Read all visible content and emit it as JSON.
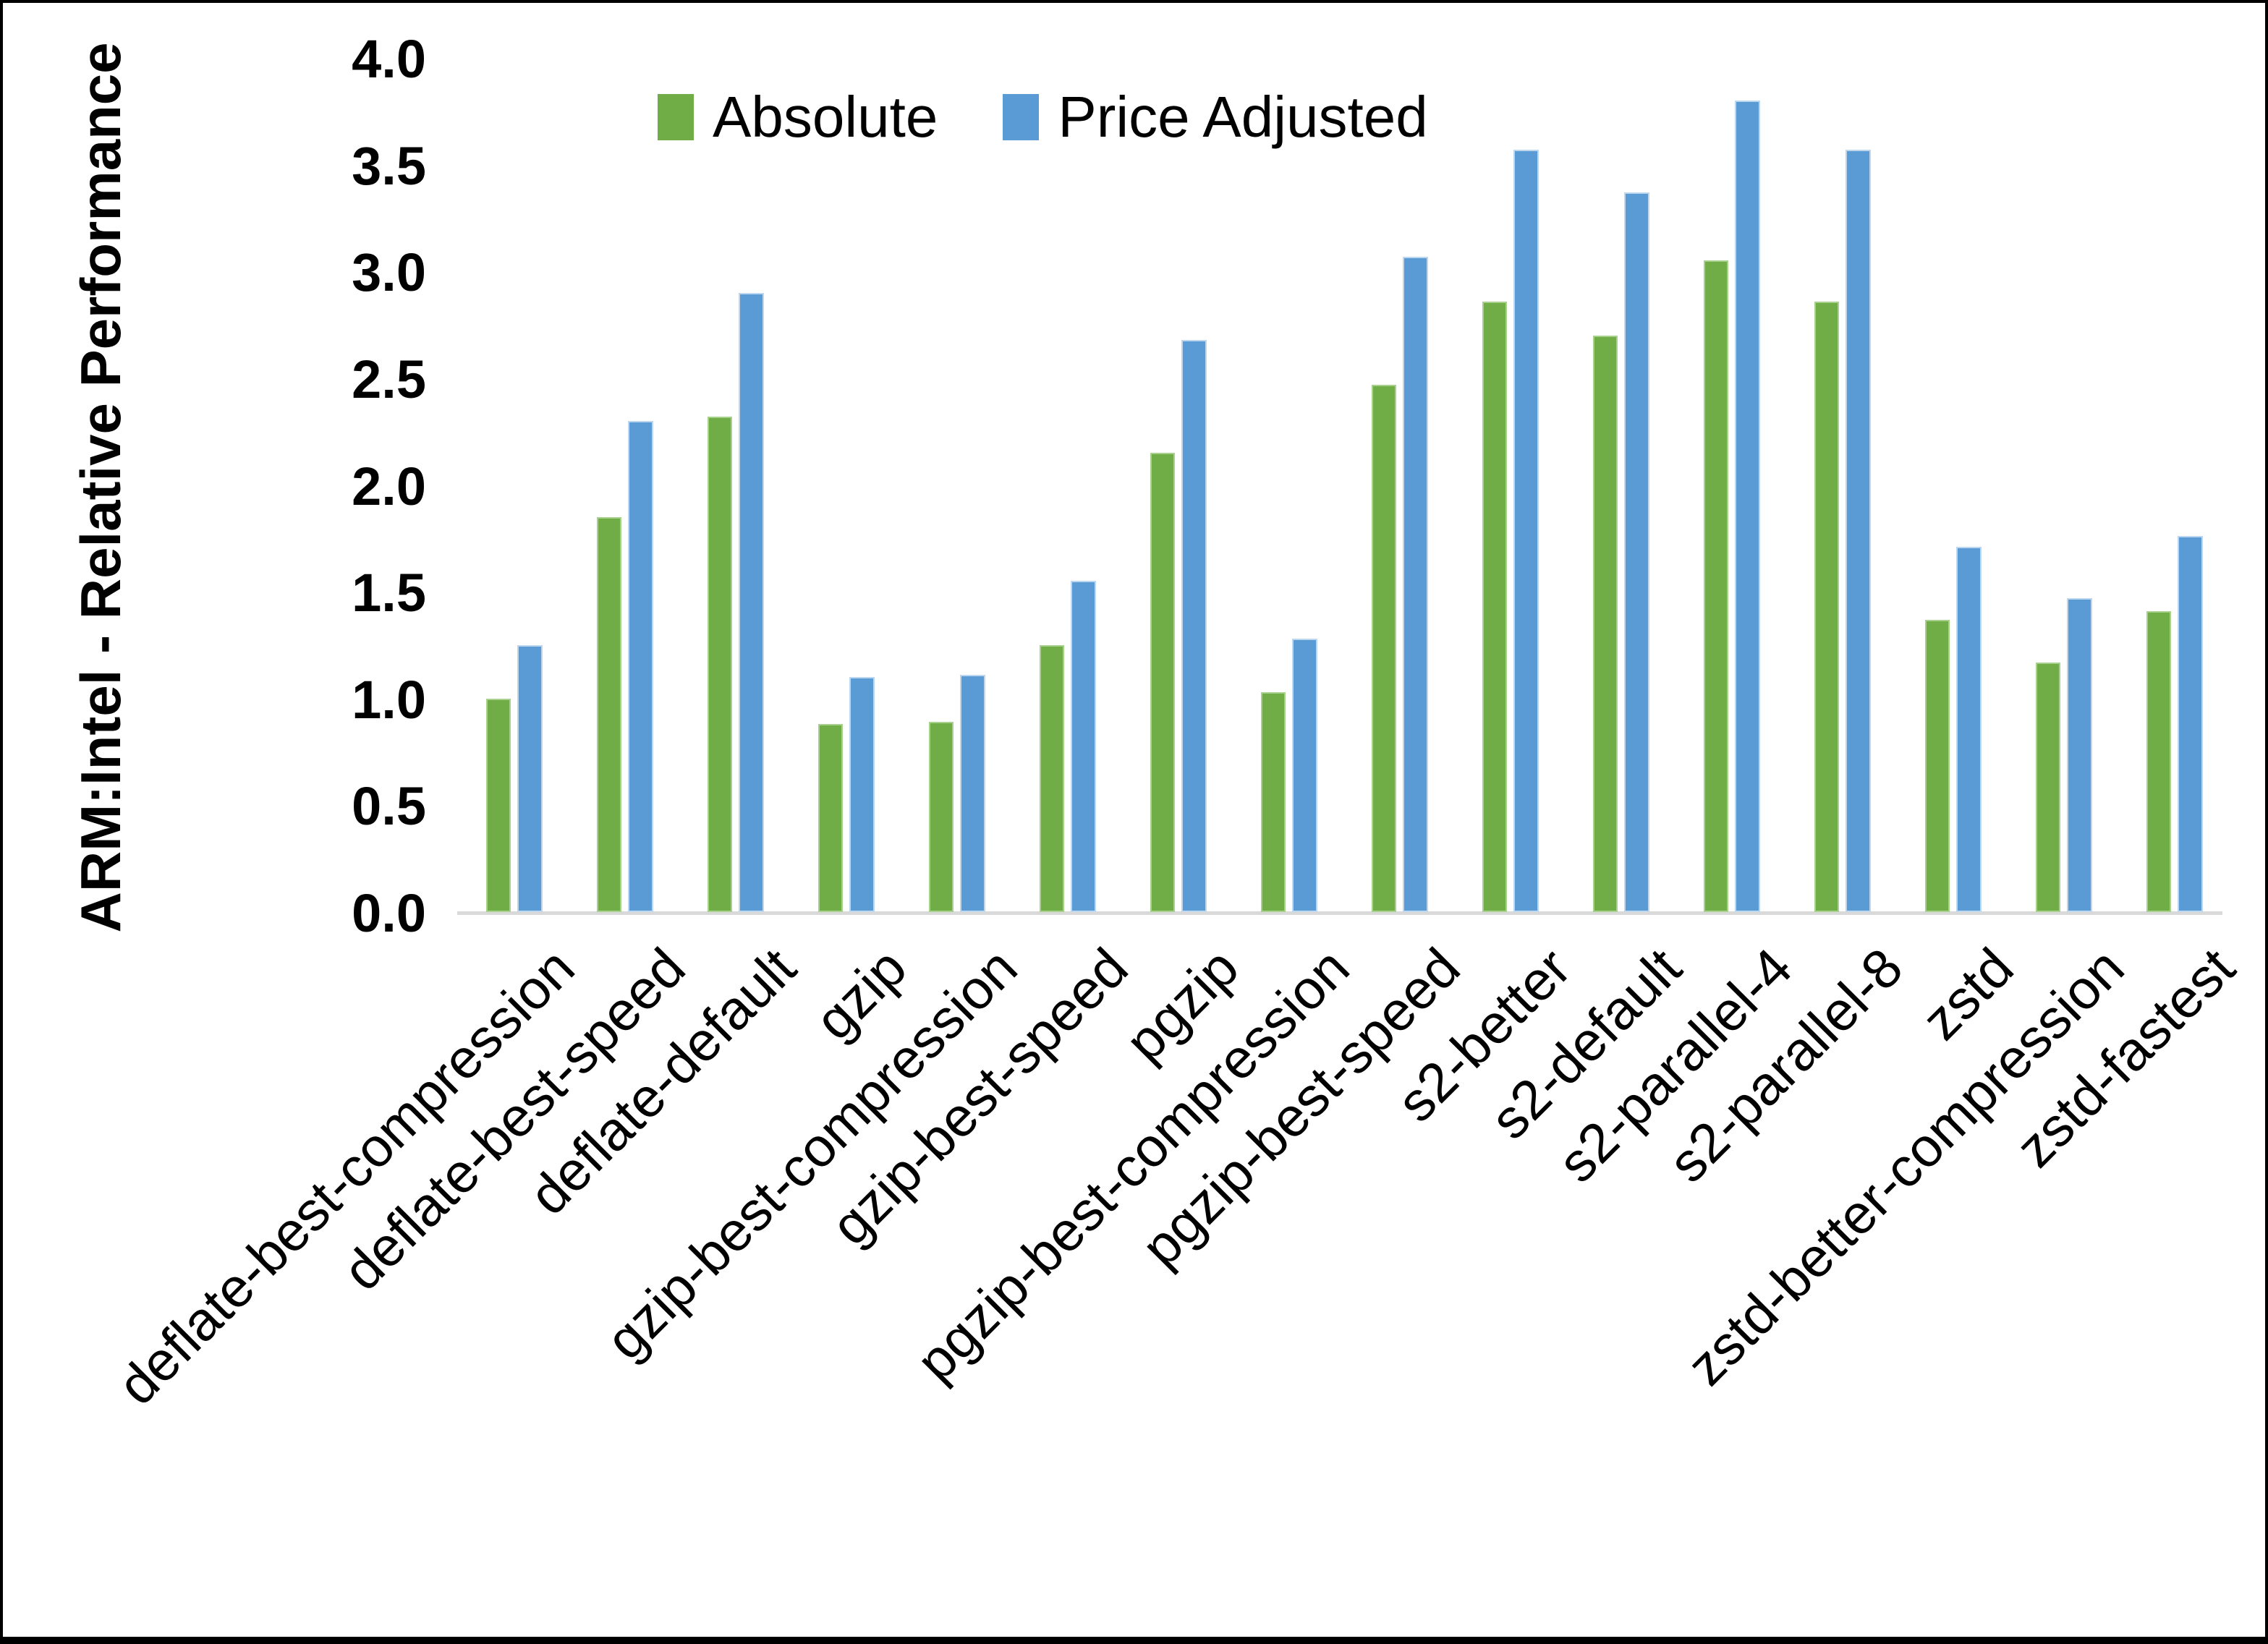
{
  "figure": {
    "background": "#ffffff",
    "border_color": "#000000",
    "axis_line_color": "#d9d9d9",
    "text_color": "#000000"
  },
  "chart_data": {
    "type": "bar",
    "title": "",
    "xlabel": "",
    "ylabel": "ARM:Intel - Relative Performance",
    "ylim": [
      0.0,
      4.0
    ],
    "ytick_step": 0.5,
    "yticks": [
      "0.0",
      "0.5",
      "1.0",
      "1.5",
      "2.0",
      "2.5",
      "3.0",
      "3.5",
      "4.0"
    ],
    "grid": false,
    "legend_position": "top-center",
    "categories": [
      "deflate-best-compression",
      "deflate-best-speed",
      "deflate-default",
      "gzip",
      "gzip-best-compression",
      "gzip-best-speed",
      "pgzip",
      "pgzip-best-compression",
      "pgzip-best-speed",
      "s2-better",
      "s2-default",
      "s2-parallel-4",
      "s2-parallel-8",
      "zstd",
      "zstd-better-compression",
      "zstd-fastest"
    ],
    "series": [
      {
        "name": "Absolute",
        "color": "#70AD47",
        "edge_color": "#a9d18e",
        "values": [
          1.0,
          1.85,
          2.32,
          0.88,
          0.89,
          1.25,
          2.15,
          1.03,
          2.47,
          2.86,
          2.7,
          3.05,
          2.86,
          1.37,
          1.17,
          1.41
        ]
      },
      {
        "name": "Price Adjusted",
        "color": "#5B9BD5",
        "edge_color": "#bdd7ee",
        "values": [
          1.25,
          2.3,
          2.9,
          1.1,
          1.11,
          1.55,
          2.68,
          1.28,
          3.07,
          3.57,
          3.37,
          3.8,
          3.57,
          1.71,
          1.47,
          1.76
        ]
      }
    ]
  }
}
